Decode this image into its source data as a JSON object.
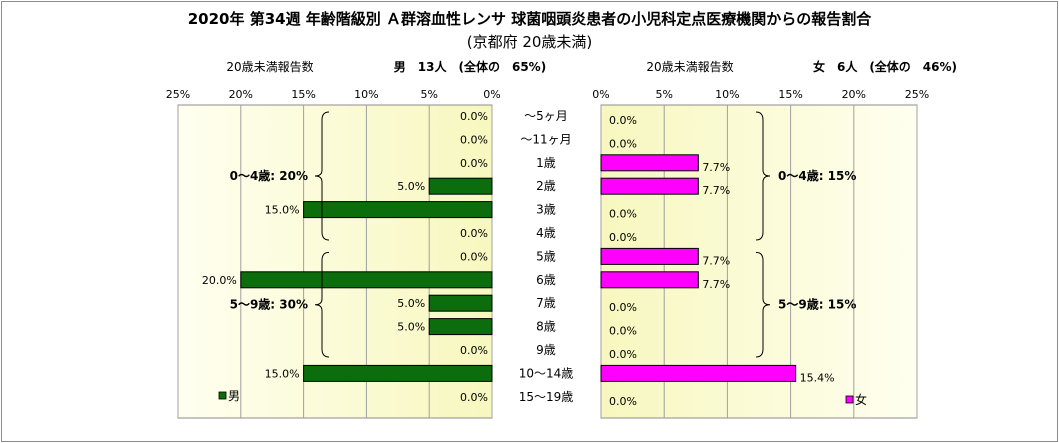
{
  "title": "2020年 第34週 年齢階級別 Ａ群溶血性レンサ 球菌咽頭炎患者の小児科定点医療機関からの報告割合",
  "subtitle": "(京都府 20歳未満)",
  "left_panel": {
    "count_label": "20歳未満報告数",
    "summary": "男　13人　(全体の　65%)",
    "legend": "男",
    "color": "#0b6d0b"
  },
  "right_panel": {
    "count_label": "20歳未満報告数",
    "summary": "女　6人　(全体の　46%)",
    "legend": "女",
    "color": "#ff00ff"
  },
  "chart_data": {
    "type": "bar",
    "orientation": "horizontal",
    "categories": [
      "～5ヶ月",
      "～11ヶ月",
      "1歳",
      "2歳",
      "3歳",
      "4歳",
      "5歳",
      "6歳",
      "7歳",
      "8歳",
      "9歳",
      "10～14歳",
      "15～19歳"
    ],
    "x_ticks": [
      "0%",
      "5%",
      "10%",
      "15%",
      "20%",
      "25%"
    ],
    "xlim": [
      0,
      25
    ],
    "series": [
      {
        "name": "男",
        "values": [
          0,
          0,
          0,
          5,
          15,
          0,
          0,
          20,
          5,
          5,
          0,
          15,
          0
        ],
        "labels": [
          "0.0%",
          "0.0%",
          "0.0%",
          "5.0%",
          "15.0%",
          "0.0%",
          "0.0%",
          "20.0%",
          "5.0%",
          "5.0%",
          "0.0%",
          "15.0%",
          "0.0%"
        ]
      },
      {
        "name": "女",
        "values": [
          0,
          0,
          7.7,
          7.7,
          0,
          0,
          7.7,
          7.7,
          0,
          0,
          0,
          15.4,
          0
        ],
        "labels": [
          "0.0%",
          "0.0%",
          "7.7%",
          "7.7%",
          "0.0%",
          "0.0%",
          "7.7%",
          "7.7%",
          "0.0%",
          "0.0%",
          "0.0%",
          "15.4%",
          "0.0%"
        ]
      }
    ],
    "annotations": {
      "male": [
        {
          "text": "0～4歳: 20%",
          "from": 0,
          "to": 5
        },
        {
          "text": "5～9歳: 30%",
          "from": 6,
          "to": 10
        }
      ],
      "female": [
        {
          "text": "0～4歳: 15%",
          "from": 0,
          "to": 5
        },
        {
          "text": "5～9歳: 15%",
          "from": 6,
          "to": 10
        }
      ]
    },
    "grid": true,
    "legend_position": "bottom-left"
  }
}
